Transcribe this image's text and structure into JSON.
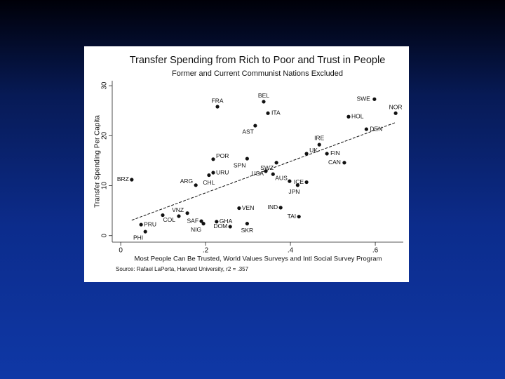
{
  "chart_data": {
    "type": "scatter",
    "title": "Transfer Spending from Rich to Poor and Trust in People",
    "subtitle": "Former and Current Communist Nations Excluded",
    "x_label": "Most People Can Be Trusted, World Values Surveys and Intl Social Survey Program",
    "y_label": "Transfer Spending Per Capita",
    "source": "Source: Rafael LaPorta, Harvard University, r2 = .357",
    "categories": [
      "SWE",
      "NOR",
      "HOL",
      "DEN",
      "FRA",
      "BEL",
      "ITA",
      "AST",
      "IRE",
      "UK",
      "FIN",
      "CAN",
      "POR",
      "SPN",
      "SWZ",
      "USA",
      "AUS",
      "URU",
      "CHL",
      "ARG",
      "BRZ",
      "ICE",
      "JPN",
      null,
      "VEN",
      "IND",
      "TAI",
      "VNZ",
      "COL",
      null,
      "SAF",
      "NIG",
      "GHA",
      "DOM",
      "SKR",
      "PRU",
      "PHI"
    ],
    "x": [
      0.598,
      0.648,
      0.537,
      0.579,
      0.228,
      0.337,
      0.347,
      0.317,
      0.468,
      0.438,
      0.486,
      0.527,
      0.218,
      0.298,
      0.367,
      0.342,
      0.359,
      0.218,
      0.208,
      0.177,
      0.026,
      0.438,
      0.417,
      0.398,
      0.279,
      0.377,
      0.42,
      0.157,
      0.137,
      0.099,
      0.19,
      0.195,
      0.226,
      0.258,
      0.298,
      0.048,
      0.058
    ],
    "values": [
      27.3,
      24.5,
      23.8,
      21.3,
      25.8,
      26.8,
      24.5,
      22.0,
      18.2,
      16.4,
      16.4,
      14.6,
      15.3,
      15.4,
      14.6,
      12.9,
      12.3,
      12.6,
      12.1,
      10.1,
      11.2,
      10.7,
      10.1,
      10.9,
      5.5,
      5.6,
      3.8,
      4.5,
      3.9,
      4.1,
      2.9,
      2.4,
      2.8,
      1.8,
      2.4,
      2.2,
      0.8
    ],
    "color": "#111111",
    "fit_line": true,
    "xlim": [
      -0.02,
      0.666
    ],
    "ylim": [
      -1.3,
      31
    ],
    "xticks": [
      0,
      {
        "value": 0.2,
        "label": ".2"
      },
      {
        "value": 0.4,
        "label": ".4"
      },
      {
        "value": 0.6,
        "label": ".6"
      }
    ],
    "yticks": [
      0,
      10,
      20,
      30
    ]
  }
}
